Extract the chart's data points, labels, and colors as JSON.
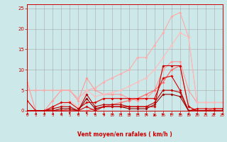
{
  "xlabel": "Vent moyen/en rafales ( km/h )",
  "xlim": [
    0,
    23
  ],
  "ylim": [
    0,
    26
  ],
  "yticks": [
    0,
    5,
    10,
    15,
    20,
    25
  ],
  "bg_color": "#cce8e8",
  "grid_color": "#aaaaaa",
  "lines": [
    {
      "x": [
        0,
        1,
        2,
        3,
        4,
        5,
        6,
        7,
        8,
        9,
        10,
        11,
        12,
        13,
        14,
        15,
        16,
        17,
        18,
        19,
        20,
        21,
        22,
        23
      ],
      "y": [
        7,
        0,
        0,
        2.5,
        5,
        5,
        2.5,
        8,
        5,
        4,
        4,
        4,
        3,
        2.5,
        3,
        5,
        10,
        12,
        12,
        5,
        2,
        2,
        2,
        2
      ],
      "color": "#ff9999",
      "lw": 0.8,
      "ms": 2.0
    },
    {
      "x": [
        0,
        1,
        2,
        3,
        4,
        5,
        6,
        7,
        8,
        9,
        10,
        11,
        12,
        13,
        14,
        15,
        16,
        17,
        18,
        19,
        20,
        21,
        22,
        23
      ],
      "y": [
        5,
        5,
        5,
        5,
        5,
        5,
        3,
        5,
        5.5,
        7,
        8,
        9,
        10,
        13,
        13,
        16,
        19,
        23,
        24,
        18,
        2,
        2,
        2,
        2
      ],
      "color": "#ffaaaa",
      "lw": 0.8,
      "ms": 2.0
    },
    {
      "x": [
        0,
        1,
        2,
        3,
        4,
        5,
        6,
        7,
        8,
        9,
        10,
        11,
        12,
        13,
        14,
        15,
        16,
        17,
        18,
        19,
        20,
        21,
        22,
        23
      ],
      "y": [
        0,
        0,
        0,
        0.5,
        1,
        2.5,
        1,
        5,
        3.5,
        4,
        4.5,
        5,
        6,
        7,
        8,
        10,
        13,
        16,
        19,
        18,
        2,
        2,
        2,
        2
      ],
      "color": "#ffbbbb",
      "lw": 0.8,
      "ms": 2.0
    },
    {
      "x": [
        0,
        1,
        2,
        3,
        4,
        5,
        6,
        7,
        8,
        9,
        10,
        11,
        12,
        13,
        14,
        15,
        16,
        17,
        18,
        19,
        20,
        21,
        22,
        23
      ],
      "y": [
        0,
        0,
        0,
        0,
        0,
        0.5,
        0,
        0,
        0.5,
        1,
        1.5,
        2,
        2.5,
        3,
        4,
        5,
        7,
        10,
        11,
        1,
        0,
        0,
        0.5,
        0.5
      ],
      "color": "#ff6666",
      "lw": 0.8,
      "ms": 2.0
    },
    {
      "x": [
        0,
        1,
        2,
        3,
        4,
        5,
        6,
        7,
        8,
        9,
        10,
        11,
        12,
        13,
        14,
        15,
        16,
        17,
        18,
        19,
        20,
        21,
        22,
        23
      ],
      "y": [
        2.5,
        0,
        0,
        1,
        2,
        2,
        0.5,
        2,
        2,
        3,
        3,
        3,
        3,
        3,
        3,
        3,
        8,
        8.5,
        5,
        0,
        0.5,
        0.5,
        0.5,
        0.5
      ],
      "color": "#dd0000",
      "lw": 0.8,
      "ms": 2.0
    },
    {
      "x": [
        0,
        1,
        2,
        3,
        4,
        5,
        6,
        7,
        8,
        9,
        10,
        11,
        12,
        13,
        14,
        15,
        16,
        17,
        18,
        19,
        20,
        21,
        22,
        23
      ],
      "y": [
        0,
        0,
        0,
        0.5,
        1,
        1,
        0,
        4,
        1,
        1.5,
        1.5,
        1.5,
        1,
        1,
        1,
        2,
        5,
        5,
        4.5,
        0,
        0,
        0,
        0,
        0
      ],
      "color": "#bb0000",
      "lw": 0.8,
      "ms": 2.0
    },
    {
      "x": [
        0,
        1,
        2,
        3,
        4,
        5,
        6,
        7,
        8,
        9,
        10,
        11,
        12,
        13,
        14,
        15,
        16,
        17,
        18,
        19,
        20,
        21,
        22,
        23
      ],
      "y": [
        0,
        0,
        0,
        0,
        0.5,
        0.5,
        0,
        3,
        0.5,
        1,
        1,
        1,
        0.5,
        0.5,
        0.5,
        1.5,
        4,
        4,
        3.5,
        0,
        0,
        0,
        0,
        0
      ],
      "color": "#990000",
      "lw": 0.8,
      "ms": 2.0
    },
    {
      "x": [
        0,
        1,
        2,
        3,
        4,
        5,
        6,
        7,
        8,
        9,
        10,
        11,
        12,
        13,
        14,
        15,
        16,
        17,
        18,
        19,
        20,
        21,
        22,
        23
      ],
      "y": [
        0,
        0,
        0,
        0,
        0,
        0,
        0,
        1,
        0,
        1,
        1,
        1,
        1,
        1,
        1,
        1,
        11,
        11,
        11,
        1,
        0,
        0,
        0,
        0
      ],
      "color": "#cc0000",
      "lw": 0.8,
      "ms": 2.0
    }
  ],
  "wind_angles": [
    225,
    225,
    225,
    225,
    225,
    270,
    225,
    270,
    180,
    135,
    135,
    135,
    135,
    135,
    135,
    90,
    45,
    45,
    0,
    0,
    0,
    0,
    0,
    0
  ],
  "spine_color": "#cc0000",
  "tick_color": "#cc0000",
  "xlabel_color": "#cc0000"
}
